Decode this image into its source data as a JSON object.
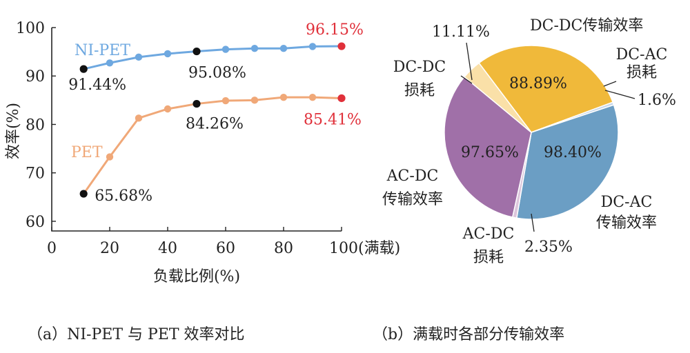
{
  "chart_data": [
    {
      "type": "line",
      "x": [
        11,
        20,
        30,
        40,
        50,
        60,
        70,
        80,
        90,
        100
      ],
      "xticks": [
        "0",
        "20",
        "40",
        "60",
        "80",
        "100"
      ],
      "xtick_values": [
        0,
        20,
        40,
        60,
        80,
        100
      ],
      "xtick_suffix": "(满载)",
      "yticks": [
        "60",
        "70",
        "80",
        "90",
        "100"
      ],
      "ytick_values": [
        60,
        70,
        80,
        90,
        100
      ],
      "xlim": [
        0,
        100
      ],
      "ylim": [
        58,
        100
      ],
      "xlabel": "负载比例(%)",
      "ylabel": "效率(%)",
      "series": [
        {
          "name": "NI-PET",
          "color": "#6ea8e0",
          "values": [
            91.44,
            92.7,
            93.9,
            94.6,
            95.08,
            95.5,
            95.7,
            95.7,
            96.1,
            96.15
          ]
        },
        {
          "name": "PET",
          "color": "#f0a878",
          "values": [
            65.68,
            73.3,
            81.3,
            83.2,
            84.26,
            84.9,
            85.0,
            85.6,
            85.6,
            85.41
          ]
        }
      ],
      "annotations": [
        {
          "text": "91.44%",
          "x": 11,
          "y": 91.44,
          "color": "#222222",
          "marker": "#111111"
        },
        {
          "text": "95.08%",
          "x": 50,
          "y": 95.08,
          "color": "#222222",
          "marker": "#111111"
        },
        {
          "text": "96.15%",
          "x": 100,
          "y": 96.15,
          "color": "#e0303a",
          "marker": "#e0303a"
        },
        {
          "text": "84.26%",
          "x": 50,
          "y": 84.26,
          "color": "#222222",
          "marker": "#111111"
        },
        {
          "text": "85.41%",
          "x": 100,
          "y": 85.41,
          "color": "#e0303a",
          "marker": "#e0303a"
        },
        {
          "text": "65.68%",
          "x": 11,
          "y": 65.68,
          "color": "#222222",
          "marker": "#111111"
        }
      ],
      "caption": "（a）NI-PET 与 PET 效率对比"
    },
    {
      "type": "pie",
      "slices": [
        {
          "label": "DC-DC传输效率",
          "value": 88.89,
          "value_text": "88.89%",
          "color": "#f0b93a"
        },
        {
          "label": "DC-AC损耗",
          "value": 1.6,
          "value_text": "1.6%",
          "color": "#c8d8ea"
        },
        {
          "label": "DC-AC传输效率",
          "value": 98.4,
          "value_text": "98.40%",
          "color": "#6b9ec4"
        },
        {
          "label": "AC-DC损耗",
          "value": 2.35,
          "value_text": "2.35%",
          "color": "#dcc6dc"
        },
        {
          "label": "AC-DC传输效率",
          "value": 97.65,
          "value_text": "97.65%",
          "color": "#a070a8"
        },
        {
          "label": "DC-DC损耗",
          "value": 11.11,
          "value_text": "11.11%",
          "color": "#fae0a8"
        }
      ],
      "label_lines": {
        "dcdc_eff": [
          "DC-DC传输效率"
        ],
        "dcac_loss": [
          "DC-AC",
          "损耗"
        ],
        "dcac_eff": [
          "DC-AC",
          "传输效率"
        ],
        "acdc_loss": [
          "AC-DC",
          "损耗"
        ],
        "acdc_eff": [
          "AC-DC",
          "传输效率"
        ],
        "dcdc_loss": [
          "DC-DC",
          "损耗"
        ]
      },
      "caption": "（b）满载时各部分传输效率"
    }
  ]
}
